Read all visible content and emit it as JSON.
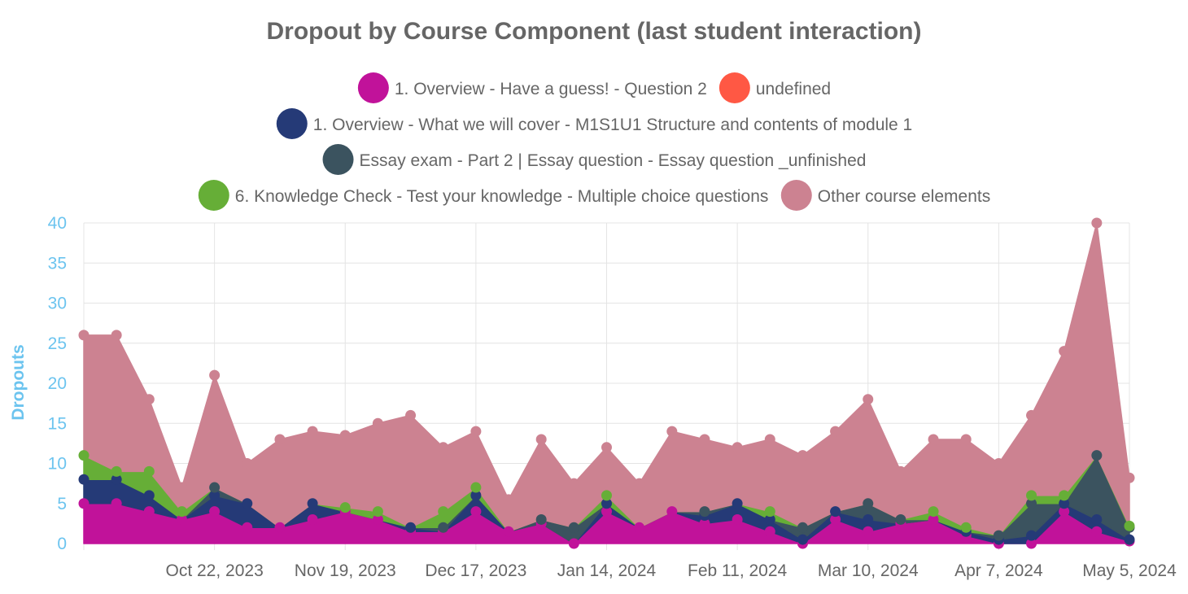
{
  "chart_data": {
    "type": "area",
    "stacked": true,
    "title": "Dropout by Course Component (last student interaction)",
    "ylabel": "Dropouts",
    "xlabel": "",
    "ylim": [
      0,
      40
    ],
    "yticks": [
      0,
      5,
      10,
      15,
      20,
      25,
      30,
      35,
      40
    ],
    "grid": true,
    "legend_position": "top",
    "x_tick_labels": [
      "Oct 22, 2023",
      "Nov 19, 2023",
      "Dec 17, 2023",
      "Jan 14, 2024",
      "Feb 11, 2024",
      "Mar 10, 2024",
      "Apr 7, 2024",
      "May 5, 2024"
    ],
    "x": [
      "2023-09-24",
      "2023-10-01",
      "2023-10-08",
      "2023-10-15",
      "2023-10-22",
      "2023-10-29",
      "2023-11-05",
      "2023-11-12",
      "2023-11-19",
      "2023-11-26",
      "2023-12-03",
      "2023-12-10",
      "2023-12-17",
      "2023-12-24",
      "2023-12-31",
      "2024-01-07",
      "2024-01-14",
      "2024-01-21",
      "2024-01-28",
      "2024-02-04",
      "2024-02-11",
      "2024-02-18",
      "2024-02-25",
      "2024-03-03",
      "2024-03-10",
      "2024-03-17",
      "2024-03-24",
      "2024-03-31",
      "2024-04-07",
      "2024-04-14",
      "2024-04-21",
      "2024-04-28",
      "2024-05-05"
    ],
    "series": [
      {
        "name": "1. Overview - Have a guess! - Question 2",
        "color": "#c1129a",
        "values": [
          5,
          5,
          4,
          3,
          4,
          2,
          2,
          3,
          4,
          3,
          1.5,
          1.5,
          4,
          1.5,
          2.5,
          0,
          4,
          2,
          4,
          2.5,
          3,
          1.5,
          0,
          3,
          1.5,
          2.5,
          3,
          1,
          0,
          0,
          4,
          1.5,
          0.3
        ]
      },
      {
        "name": "undefined",
        "color": "#ff5844",
        "values": [
          0,
          0,
          0,
          0,
          0,
          0,
          0,
          0,
          0,
          0,
          0,
          0,
          0,
          0,
          0,
          0,
          0,
          0,
          0,
          0,
          0,
          0,
          0,
          0,
          0,
          0,
          0,
          0,
          0,
          0,
          0,
          0,
          0
        ]
      },
      {
        "name": "1. Overview - What we will cover - M1S1U1 Structure and contents of module 1",
        "color": "#253a77",
        "values": [
          3,
          3,
          2,
          0,
          2,
          3,
          0,
          2,
          0,
          0,
          0.5,
          0,
          2,
          0,
          0,
          0,
          1,
          0,
          0,
          1,
          2,
          1.5,
          0.5,
          1,
          1.5,
          0,
          0,
          0.5,
          0.5,
          1,
          1,
          1.5,
          0.2
        ]
      },
      {
        "name": "Essay exam - Part 2 | Essay question - Essay question _unfinished",
        "color": "#3b535f",
        "values": [
          0,
          0,
          0,
          0,
          1,
          0,
          0,
          0,
          0,
          0,
          0,
          0.5,
          0,
          0,
          0.5,
          2,
          0,
          0,
          0,
          0.5,
          0,
          0,
          1.5,
          0,
          2,
          0.5,
          0,
          0,
          0.5,
          4,
          0,
          8,
          1.5
        ]
      },
      {
        "name": "6. Knowledge Check - Test your knowledge - Multiple choice questions",
        "color": "#66ae37",
        "values": [
          3,
          1,
          3,
          1,
          0,
          0,
          0,
          0,
          0.5,
          1,
          0,
          2,
          1,
          0,
          0,
          0,
          1,
          0,
          0,
          0,
          0,
          1,
          0,
          0,
          0,
          0,
          1,
          0.5,
          0,
          1,
          1,
          0,
          0.2
        ]
      },
      {
        "name": "Other course elements",
        "color": "#cc8291",
        "values": [
          15,
          17,
          9,
          3,
          14,
          5,
          11,
          9,
          9,
          11,
          14,
          8,
          7,
          4,
          10,
          5.5,
          6,
          5.5,
          10,
          9,
          7,
          9,
          9,
          10,
          13,
          6,
          9,
          11,
          9,
          10,
          18,
          29,
          6
        ]
      }
    ]
  }
}
